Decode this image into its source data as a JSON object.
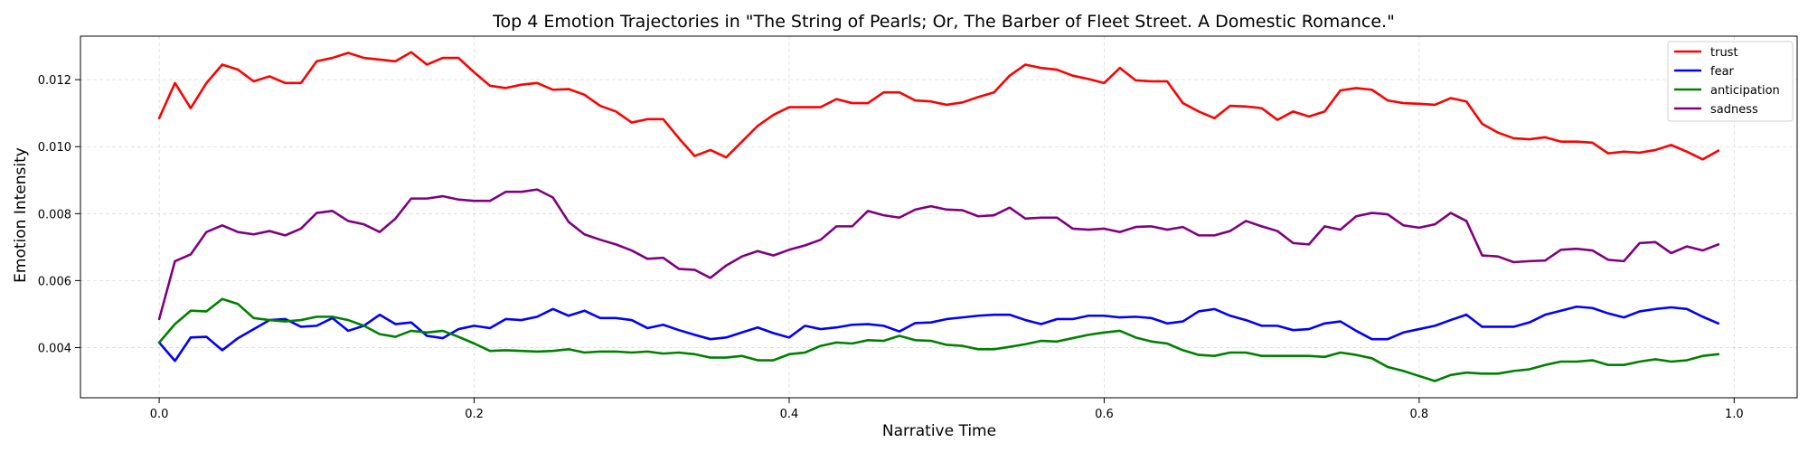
{
  "chart_data": {
    "type": "line",
    "title": "Top 4 Emotion Trajectories in \"The String of Pearls; Or, The Barber of Fleet Street. A Domestic Romance.\"",
    "xlabel": "Narrative Time",
    "ylabel": "Emotion Intensity",
    "xlim": [
      -0.05,
      1.04
    ],
    "ylim": [
      0.0025,
      0.0133
    ],
    "xticks": [
      0.0,
      0.2,
      0.4,
      0.6,
      0.8,
      1.0
    ],
    "xtick_labels": [
      "0.0",
      "0.2",
      "0.4",
      "0.6",
      "0.8",
      "1.0"
    ],
    "yticks": [
      0.004,
      0.006,
      0.008,
      0.01,
      0.012
    ],
    "ytick_labels": [
      "0.004",
      "0.006",
      "0.008",
      "0.010",
      "0.012"
    ],
    "grid": true,
    "legend_position": "top-right",
    "x_start": 0.0,
    "x_step": 0.01,
    "series": [
      {
        "name": "trust",
        "color": "#ff0000",
        "values": [
          0.01085,
          0.0119,
          0.01115,
          0.0119,
          0.01245,
          0.0123,
          0.01195,
          0.0121,
          0.0119,
          0.0119,
          0.01255,
          0.01265,
          0.0128,
          0.01265,
          0.0126,
          0.01255,
          0.01282,
          0.01245,
          0.01265,
          0.01265,
          0.01222,
          0.01182,
          0.01175,
          0.01185,
          0.0119,
          0.0117,
          0.01172,
          0.01155,
          0.01122,
          0.01105,
          0.01072,
          0.01082,
          0.01082,
          0.01025,
          0.00972,
          0.0099,
          0.00968,
          0.01015,
          0.01062,
          0.01095,
          0.01118,
          0.01118,
          0.01118,
          0.01142,
          0.0113,
          0.0113,
          0.01162,
          0.01162,
          0.01138,
          0.01135,
          0.01125,
          0.01132,
          0.01148,
          0.01162,
          0.01212,
          0.01245,
          0.01235,
          0.0123,
          0.01212,
          0.01202,
          0.0119,
          0.01235,
          0.01198,
          0.01195,
          0.01195,
          0.0113,
          0.01105,
          0.01085,
          0.01122,
          0.0112,
          0.01115,
          0.0108,
          0.01105,
          0.0109,
          0.01105,
          0.01168,
          0.01175,
          0.0117,
          0.01138,
          0.0113,
          0.01128,
          0.01125,
          0.01145,
          0.01135,
          0.01068,
          0.01042,
          0.01025,
          0.01022,
          0.01028,
          0.01015,
          0.01015,
          0.01012,
          0.0098,
          0.00985,
          0.00982,
          0.0099,
          0.01005,
          0.00985,
          0.00962,
          0.00988
        ]
      },
      {
        "name": "fear",
        "color": "#0000ff",
        "values": [
          0.00415,
          0.0036,
          0.0043,
          0.00432,
          0.00392,
          0.00428,
          0.00455,
          0.00482,
          0.00485,
          0.00462,
          0.00465,
          0.00488,
          0.0045,
          0.00465,
          0.00498,
          0.0047,
          0.00475,
          0.00435,
          0.00428,
          0.00455,
          0.00465,
          0.00458,
          0.00485,
          0.00482,
          0.00492,
          0.00515,
          0.00495,
          0.0051,
          0.00488,
          0.00488,
          0.00482,
          0.00458,
          0.00468,
          0.00452,
          0.00438,
          0.00425,
          0.0043,
          0.00445,
          0.0046,
          0.00443,
          0.0043,
          0.00465,
          0.00455,
          0.0046,
          0.00468,
          0.0047,
          0.00465,
          0.00448,
          0.00473,
          0.00475,
          0.00485,
          0.0049,
          0.00495,
          0.00498,
          0.00498,
          0.00482,
          0.0047,
          0.00485,
          0.00485,
          0.00495,
          0.00495,
          0.0049,
          0.00492,
          0.00488,
          0.00472,
          0.00478,
          0.00508,
          0.00515,
          0.00495,
          0.00482,
          0.00465,
          0.00465,
          0.00452,
          0.00455,
          0.00472,
          0.00478,
          0.0045,
          0.00425,
          0.00425,
          0.00445,
          0.00455,
          0.00465,
          0.00482,
          0.00498,
          0.00462,
          0.00462,
          0.00462,
          0.00475,
          0.00498,
          0.0051,
          0.00522,
          0.00518,
          0.00502,
          0.0049,
          0.00508,
          0.00515,
          0.0052,
          0.00515,
          0.00492,
          0.00472
        ]
      },
      {
        "name": "anticipation",
        "color": "#008000",
        "values": [
          0.00415,
          0.0047,
          0.0051,
          0.00508,
          0.00545,
          0.0053,
          0.00488,
          0.00482,
          0.00478,
          0.00482,
          0.00492,
          0.00492,
          0.00482,
          0.00465,
          0.0044,
          0.00432,
          0.0045,
          0.00445,
          0.0045,
          0.00432,
          0.00412,
          0.0039,
          0.00392,
          0.0039,
          0.00388,
          0.0039,
          0.00395,
          0.00385,
          0.00388,
          0.00388,
          0.00385,
          0.00388,
          0.00382,
          0.00385,
          0.0038,
          0.0037,
          0.0037,
          0.00375,
          0.00362,
          0.00362,
          0.0038,
          0.00385,
          0.00405,
          0.00415,
          0.00412,
          0.00422,
          0.0042,
          0.00435,
          0.00422,
          0.0042,
          0.00408,
          0.00405,
          0.00395,
          0.00395,
          0.00402,
          0.0041,
          0.0042,
          0.00418,
          0.00428,
          0.00438,
          0.00445,
          0.0045,
          0.0043,
          0.00418,
          0.00412,
          0.00392,
          0.00378,
          0.00375,
          0.00385,
          0.00385,
          0.00375,
          0.00375,
          0.00375,
          0.00375,
          0.00372,
          0.00385,
          0.00378,
          0.00368,
          0.00342,
          0.0033,
          0.00315,
          0.003,
          0.00318,
          0.00325,
          0.00322,
          0.00322,
          0.0033,
          0.00335,
          0.00348,
          0.00358,
          0.00358,
          0.00362,
          0.00348,
          0.00348,
          0.00358,
          0.00365,
          0.00358,
          0.00362,
          0.00375,
          0.0038
        ]
      },
      {
        "name": "sadness",
        "color": "#800080",
        "values": [
          0.00485,
          0.00658,
          0.00678,
          0.00745,
          0.00765,
          0.00745,
          0.00738,
          0.00748,
          0.00735,
          0.00755,
          0.00802,
          0.00808,
          0.00778,
          0.00768,
          0.00745,
          0.00785,
          0.00845,
          0.00845,
          0.00852,
          0.00842,
          0.00838,
          0.00838,
          0.00865,
          0.00865,
          0.00872,
          0.00848,
          0.00775,
          0.00738,
          0.00722,
          0.00708,
          0.0069,
          0.00665,
          0.00668,
          0.00635,
          0.00632,
          0.00608,
          0.00645,
          0.00672,
          0.00688,
          0.00675,
          0.00692,
          0.00705,
          0.00722,
          0.00762,
          0.00762,
          0.00808,
          0.00795,
          0.00788,
          0.00812,
          0.00822,
          0.00812,
          0.0081,
          0.00792,
          0.00795,
          0.00818,
          0.00785,
          0.00788,
          0.00788,
          0.00755,
          0.00752,
          0.00755,
          0.00745,
          0.0076,
          0.00762,
          0.00752,
          0.0076,
          0.00735,
          0.00735,
          0.00748,
          0.00778,
          0.00762,
          0.00748,
          0.00712,
          0.00708,
          0.00762,
          0.00752,
          0.00792,
          0.00802,
          0.00798,
          0.00765,
          0.00758,
          0.00768,
          0.00802,
          0.00778,
          0.00675,
          0.00672,
          0.00655,
          0.00658,
          0.0066,
          0.00692,
          0.00695,
          0.0069,
          0.00662,
          0.00658,
          0.00712,
          0.00715,
          0.00682,
          0.00702,
          0.0069,
          0.00708
        ]
      }
    ]
  }
}
